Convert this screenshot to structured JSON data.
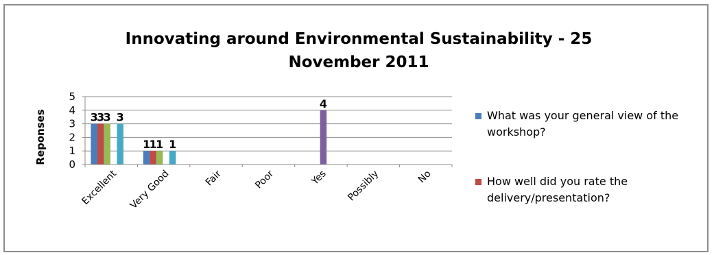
{
  "chart_data": {
    "type": "bar",
    "title_lines": [
      "Innovating around Environmental Sustainability - 25",
      "November 2011"
    ],
    "ylabel": "Reponses",
    "xlabel": "",
    "ylim": [
      0,
      5
    ],
    "yticks": [
      0,
      1,
      2,
      3,
      4,
      5
    ],
    "grid": true,
    "categories": [
      "Excellent",
      "Very Good",
      "Fair",
      "Poor",
      "Yes",
      "Possibly",
      "No"
    ],
    "series": [
      {
        "name": "What was your general view of the workshop?",
        "color": "#4a7ebb",
        "values": [
          3,
          1,
          0,
          0,
          0,
          0,
          0
        ]
      },
      {
        "name": "How well did you rate the delivery/presentation?",
        "color": "#be4b48",
        "values": [
          3,
          1,
          0,
          0,
          0,
          0,
          0
        ]
      },
      {
        "name": "",
        "color": "#98b954",
        "values": [
          3,
          1,
          0,
          0,
          0,
          0,
          0
        ]
      },
      {
        "name": "",
        "color": "#7d60a0",
        "values": [
          0,
          0,
          0,
          0,
          4,
          0,
          0
        ]
      },
      {
        "name": "",
        "color": "#46aac5",
        "values": [
          3,
          1,
          0,
          0,
          0,
          0,
          0
        ]
      }
    ],
    "legend_position": "right",
    "legend_lines": [
      [
        "What was your general view of the",
        "workshop?"
      ],
      [
        "How well did you rate the",
        "delivery/presentation?"
      ]
    ]
  }
}
